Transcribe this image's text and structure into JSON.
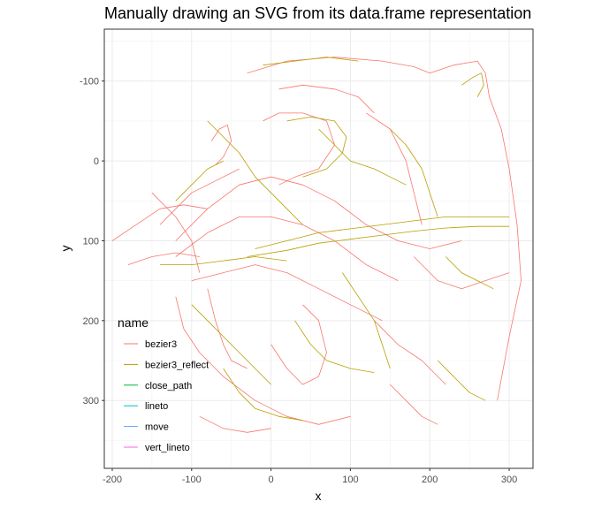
{
  "chart_data": {
    "type": "line",
    "title": "Manually drawing an SVG from its data.frame representation",
    "xlabel": "x",
    "ylabel": "y",
    "xlim": [
      -210,
      330
    ],
    "ylim": [
      -165,
      385
    ],
    "y_reversed": true,
    "x_ticks": [
      -200,
      -100,
      0,
      100,
      200,
      300
    ],
    "y_ticks": [
      -100,
      0,
      100,
      200,
      300
    ],
    "grid": true,
    "legend": {
      "title": "name",
      "placement": "inside-bottom-left",
      "entries": [
        {
          "name": "bezier3",
          "color": "#F8766D"
        },
        {
          "name": "bezier3_reflect",
          "color": "#B79F00"
        },
        {
          "name": "close_path",
          "color": "#00BA38"
        },
        {
          "name": "lineto",
          "color": "#00BFC4"
        },
        {
          "name": "move",
          "color": "#619CFF"
        },
        {
          "name": "vert_lineto",
          "color": "#F564E3"
        }
      ]
    },
    "series": [
      {
        "name": "bezier3",
        "color": "#F8766D",
        "paths": [
          [
            [
              -30,
              -110
            ],
            [
              20,
              -125
            ],
            [
              80,
              -130
            ],
            [
              140,
              -125
            ],
            [
              180,
              -118
            ],
            [
              200,
              -110
            ]
          ],
          [
            [
              200,
              -110
            ],
            [
              230,
              -120
            ],
            [
              260,
              -125
            ],
            [
              270,
              -110
            ],
            [
              275,
              -80
            ],
            [
              290,
              -40
            ],
            [
              300,
              10
            ],
            [
              310,
              80
            ],
            [
              315,
              150
            ],
            [
              300,
              220
            ],
            [
              285,
              300
            ]
          ],
          [
            [
              -120,
              100
            ],
            [
              -80,
              60
            ],
            [
              -40,
              30
            ],
            [
              0,
              20
            ],
            [
              40,
              30
            ],
            [
              80,
              50
            ],
            [
              120,
              80
            ],
            [
              160,
              100
            ],
            [
              200,
              110
            ],
            [
              240,
              100
            ]
          ],
          [
            [
              -120,
              120
            ],
            [
              -80,
              90
            ],
            [
              -40,
              70
            ],
            [
              0,
              70
            ],
            [
              40,
              80
            ],
            [
              80,
              100
            ],
            [
              120,
              130
            ],
            [
              160,
              150
            ]
          ],
          [
            [
              -100,
              150
            ],
            [
              -60,
              140
            ],
            [
              -20,
              130
            ],
            [
              20,
              140
            ],
            [
              60,
              160
            ],
            [
              100,
              180
            ],
            [
              140,
              200
            ]
          ],
          [
            [
              -140,
              80
            ],
            [
              -120,
              60
            ],
            [
              -100,
              40
            ],
            [
              -80,
              30
            ],
            [
              -60,
              20
            ],
            [
              -40,
              10
            ]
          ],
          [
            [
              -10,
              -50
            ],
            [
              10,
              -60
            ],
            [
              40,
              -60
            ],
            [
              70,
              -50
            ],
            [
              80,
              -20
            ],
            [
              60,
              10
            ],
            [
              30,
              20
            ],
            [
              10,
              30
            ]
          ],
          [
            [
              -75,
              -25
            ],
            [
              -65,
              -40
            ],
            [
              -55,
              -45
            ],
            [
              -50,
              -25
            ],
            [
              -60,
              -5
            ],
            [
              -70,
              5
            ]
          ],
          [
            [
              -120,
              170
            ],
            [
              -110,
              210
            ],
            [
              -90,
              240
            ],
            [
              -60,
              270
            ],
            [
              -20,
              300
            ],
            [
              20,
              320
            ],
            [
              60,
              330
            ],
            [
              100,
              320
            ]
          ],
          [
            [
              0,
              230
            ],
            [
              20,
              260
            ],
            [
              40,
              280
            ],
            [
              60,
              270
            ],
            [
              70,
              240
            ],
            [
              60,
              200
            ],
            [
              40,
              180
            ]
          ],
          [
            [
              -80,
              160
            ],
            [
              -70,
              200
            ],
            [
              -60,
              230
            ],
            [
              -50,
              250
            ],
            [
              -30,
              260
            ]
          ],
          [
            [
              130,
              200
            ],
            [
              160,
              230
            ],
            [
              190,
              250
            ],
            [
              220,
              280
            ]
          ],
          [
            [
              180,
              120
            ],
            [
              210,
              150
            ],
            [
              240,
              160
            ],
            [
              270,
              150
            ],
            [
              300,
              140
            ]
          ],
          [
            [
              120,
              -60
            ],
            [
              150,
              -40
            ],
            [
              170,
              0
            ],
            [
              180,
              40
            ],
            [
              190,
              80
            ]
          ],
          [
            [
              -200,
              100
            ],
            [
              -170,
              80
            ],
            [
              -140,
              60
            ],
            [
              -110,
              55
            ],
            [
              -80,
              60
            ]
          ],
          [
            [
              -150,
              40
            ],
            [
              -120,
              70
            ],
            [
              -100,
              100
            ],
            [
              -90,
              140
            ]
          ],
          [
            [
              -180,
              130
            ],
            [
              -150,
              120
            ],
            [
              -120,
              115
            ],
            [
              -90,
              120
            ]
          ],
          [
            [
              10,
              -90
            ],
            [
              40,
              -95
            ],
            [
              80,
              -90
            ],
            [
              110,
              -80
            ],
            [
              130,
              -60
            ]
          ],
          [
            [
              -90,
              320
            ],
            [
              -60,
              335
            ],
            [
              -30,
              340
            ],
            [
              0,
              335
            ]
          ],
          [
            [
              150,
              280
            ],
            [
              170,
              300
            ],
            [
              190,
              320
            ],
            [
              210,
              330
            ]
          ]
        ]
      },
      {
        "name": "bezier3_reflect",
        "color": "#B79F00",
        "paths": [
          [
            [
              -80,
              -50
            ],
            [
              -60,
              -30
            ],
            [
              -40,
              -10
            ],
            [
              -20,
              20
            ],
            [
              0,
              40
            ],
            [
              20,
              60
            ],
            [
              40,
              80
            ]
          ],
          [
            [
              60,
              -40
            ],
            [
              80,
              -20
            ],
            [
              100,
              0
            ],
            [
              130,
              10
            ],
            [
              150,
              20
            ],
            [
              170,
              30
            ]
          ],
          [
            [
              -20,
              110
            ],
            [
              20,
              100
            ],
            [
              60,
              90
            ],
            [
              100,
              85
            ],
            [
              140,
              80
            ],
            [
              180,
              75
            ],
            [
              220,
              70
            ],
            [
              260,
              70
            ],
            [
              300,
              70
            ]
          ],
          [
            [
              -30,
              120
            ],
            [
              20,
              112
            ],
            [
              60,
              103
            ],
            [
              100,
              98
            ],
            [
              140,
              93
            ],
            [
              180,
              88
            ],
            [
              220,
              84
            ],
            [
              260,
              82
            ],
            [
              300,
              82
            ]
          ],
          [
            [
              20,
              -50
            ],
            [
              50,
              -55
            ],
            [
              80,
              -50
            ],
            [
              95,
              -30
            ],
            [
              90,
              -10
            ],
            [
              70,
              10
            ],
            [
              40,
              20
            ]
          ],
          [
            [
              -140,
              130
            ],
            [
              -100,
              130
            ],
            [
              -60,
              125
            ],
            [
              -20,
              120
            ],
            [
              20,
              125
            ]
          ],
          [
            [
              -100,
              180
            ],
            [
              -80,
              200
            ],
            [
              -60,
              220
            ],
            [
              -40,
              240
            ],
            [
              -20,
              260
            ],
            [
              0,
              280
            ]
          ],
          [
            [
              30,
              200
            ],
            [
              50,
              230
            ],
            [
              70,
              250
            ],
            [
              100,
              260
            ],
            [
              130,
              265
            ]
          ],
          [
            [
              210,
              250
            ],
            [
              230,
              270
            ],
            [
              250,
              290
            ],
            [
              270,
              300
            ]
          ],
          [
            [
              240,
              -95
            ],
            [
              255,
              -105
            ],
            [
              265,
              -110
            ],
            [
              268,
              -95
            ],
            [
              260,
              -80
            ]
          ],
          [
            [
              -10,
              -120
            ],
            [
              30,
              -125
            ],
            [
              70,
              -130
            ],
            [
              110,
              -125
            ]
          ],
          [
            [
              -120,
              50
            ],
            [
              -100,
              30
            ],
            [
              -80,
              10
            ],
            [
              -60,
              0
            ]
          ],
          [
            [
              90,
              140
            ],
            [
              110,
              170
            ],
            [
              130,
              200
            ],
            [
              140,
              230
            ],
            [
              150,
              260
            ]
          ],
          [
            [
              -60,
              260
            ],
            [
              -40,
              290
            ],
            [
              -20,
              310
            ],
            [
              10,
              320
            ],
            [
              40,
              325
            ]
          ],
          [
            [
              220,
              120
            ],
            [
              240,
              140
            ],
            [
              260,
              150
            ],
            [
              280,
              160
            ]
          ],
          [
            [
              150,
              -40
            ],
            [
              170,
              -20
            ],
            [
              190,
              10
            ],
            [
              200,
              40
            ],
            [
              210,
              70
            ]
          ]
        ]
      },
      {
        "name": "close_path",
        "color": "#00BA38",
        "paths": []
      },
      {
        "name": "lineto",
        "color": "#00BFC4",
        "paths": []
      },
      {
        "name": "move",
        "color": "#619CFF",
        "paths": []
      },
      {
        "name": "vert_lineto",
        "color": "#F564E3",
        "paths": []
      }
    ]
  }
}
